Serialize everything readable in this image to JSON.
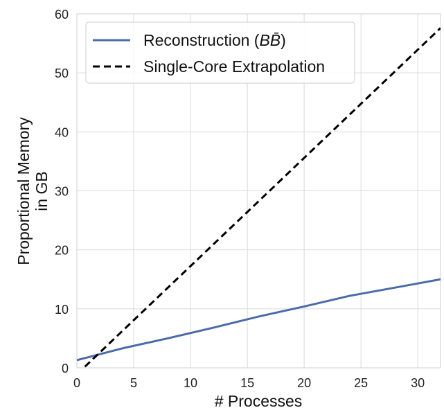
{
  "chart_data": {
    "type": "line",
    "xlabel": "# Processes",
    "ylabel_lines": [
      "Proportional Memory",
      "in GB"
    ],
    "xlim": [
      0,
      32
    ],
    "ylim": [
      0,
      60
    ],
    "x_ticks": [
      0,
      5,
      10,
      15,
      20,
      25,
      30
    ],
    "y_ticks": [
      0,
      10,
      20,
      30,
      40,
      50,
      60
    ],
    "grid": true,
    "legend_position": "top-left",
    "series": [
      {
        "name": "Reconstruction (",
        "name_math": "BB̄",
        "name_suffix": ")",
        "style": "solid",
        "color": "#4c6aaa",
        "x": [
          0,
          1,
          2,
          4,
          8,
          12,
          16,
          20,
          24,
          28,
          32
        ],
        "y": [
          1.3,
          1.8,
          2.3,
          3.3,
          5.0,
          6.8,
          8.7,
          10.4,
          12.2,
          13.6,
          15.0
        ]
      },
      {
        "name": "Single-Core Extrapolation",
        "style": "dashed",
        "color": "#000000",
        "x": [
          0,
          32
        ],
        "y": [
          -1.1,
          57.6
        ]
      }
    ]
  }
}
